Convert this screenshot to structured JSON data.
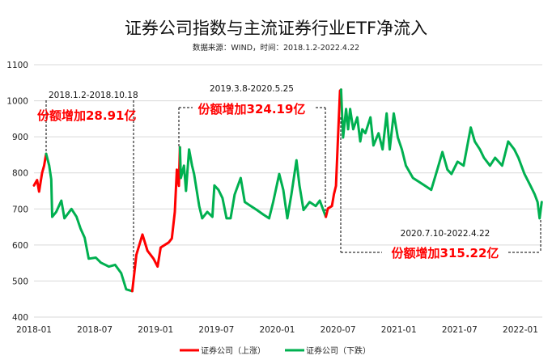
{
  "chart_data": {
    "type": "line",
    "title": "证券公司指数与主流证券行业ETF净流入",
    "subtitle": "数据来源：WIND，时间：2018.1.2-2022.4.22",
    "xlabel": "",
    "ylabel": "",
    "x_unit": "months since 2018-01",
    "ylim": [
      400,
      1100
    ],
    "yticks": [
      "1100",
      "1000",
      "900",
      "800",
      "700",
      "600",
      "500",
      "400"
    ],
    "xticks": [
      {
        "label": "2018-01",
        "x": 0
      },
      {
        "label": "2018-07",
        "x": 6
      },
      {
        "label": "2019-01",
        "x": 12
      },
      {
        "label": "2019-07",
        "x": 18
      },
      {
        "label": "2020-01",
        "x": 24
      },
      {
        "label": "2020-07",
        "x": 30
      },
      {
        "label": "2021-01",
        "x": 36
      },
      {
        "label": "2021-07",
        "x": 42
      },
      {
        "label": "2022-01",
        "x": 48
      }
    ],
    "xlim": [
      0,
      50.1
    ],
    "grid": true,
    "legend_position": "bottom",
    "legend": [
      {
        "name": "证券公司（上涨）",
        "color": "#ff0000"
      },
      {
        "name": "证券公司（下跌）",
        "color": "#00b050"
      }
    ],
    "segments": [
      {
        "trend": "up",
        "points": [
          [
            0,
            765
          ],
          [
            0.3,
            780
          ],
          [
            0.5,
            748
          ],
          [
            0.8,
            800
          ],
          [
            1.0,
            820
          ],
          [
            1.2,
            853
          ]
        ]
      },
      {
        "trend": "down",
        "points": [
          [
            1.2,
            853
          ],
          [
            1.5,
            820
          ],
          [
            1.7,
            782
          ],
          [
            1.8,
            678
          ],
          [
            2.2,
            692
          ],
          [
            2.7,
            723
          ],
          [
            3.0,
            674
          ],
          [
            3.7,
            700
          ],
          [
            4.2,
            678
          ],
          [
            4.6,
            645
          ],
          [
            5.0,
            620
          ],
          [
            5.4,
            562
          ],
          [
            6.1,
            565
          ],
          [
            6.6,
            551
          ],
          [
            7.4,
            540
          ],
          [
            8.0,
            545
          ],
          [
            8.6,
            522
          ],
          [
            9.1,
            477
          ],
          [
            9.7,
            472
          ]
        ]
      },
      {
        "trend": "up",
        "points": [
          [
            9.7,
            472
          ],
          [
            10.1,
            573
          ],
          [
            10.7,
            629
          ],
          [
            11.2,
            584
          ],
          [
            11.8,
            562
          ],
          [
            12.2,
            540
          ],
          [
            12.5,
            593
          ],
          [
            13.3,
            607
          ],
          [
            13.6,
            618
          ],
          [
            13.9,
            692
          ],
          [
            14.1,
            809
          ],
          [
            14.3,
            764
          ],
          [
            14.4,
            871
          ]
        ]
      },
      {
        "trend": "down",
        "points": [
          [
            14.4,
            871
          ],
          [
            14.5,
            786
          ],
          [
            14.8,
            820
          ],
          [
            15.0,
            750
          ],
          [
            15.3,
            865
          ],
          [
            15.6,
            820
          ],
          [
            15.8,
            797
          ],
          [
            16.3,
            708
          ],
          [
            16.6,
            674
          ],
          [
            17.1,
            692
          ],
          [
            17.6,
            678
          ],
          [
            17.8,
            765
          ],
          [
            18.2,
            753
          ],
          [
            18.6,
            730
          ],
          [
            19.0,
            674
          ],
          [
            19.4,
            674
          ],
          [
            19.8,
            740
          ],
          [
            20.4,
            786
          ],
          [
            20.8,
            719
          ],
          [
            21.4,
            708
          ],
          [
            22.0,
            697
          ],
          [
            22.6,
            685
          ],
          [
            23.2,
            674
          ],
          [
            23.6,
            719
          ],
          [
            24.2,
            797
          ],
          [
            24.6,
            753
          ],
          [
            25.0,
            674
          ],
          [
            25.4,
            740
          ],
          [
            25.9,
            835
          ],
          [
            26.2,
            765
          ],
          [
            26.6,
            697
          ],
          [
            27.2,
            719
          ],
          [
            27.8,
            708
          ],
          [
            28.2,
            723
          ],
          [
            28.8,
            678
          ]
        ]
      },
      {
        "trend": "up",
        "points": [
          [
            28.8,
            678
          ],
          [
            29.0,
            701
          ],
          [
            29.4,
            708
          ],
          [
            29.6,
            741
          ],
          [
            29.8,
            764
          ],
          [
            30.0,
            898
          ],
          [
            30.2,
            1028
          ],
          [
            30.3,
            1031
          ]
        ]
      },
      {
        "trend": "down",
        "points": [
          [
            30.3,
            1031
          ],
          [
            30.4,
            965
          ],
          [
            30.5,
            898
          ],
          [
            30.8,
            977
          ],
          [
            31.0,
            921
          ],
          [
            31.2,
            977
          ],
          [
            31.5,
            921
          ],
          [
            31.9,
            954
          ],
          [
            32.2,
            887
          ],
          [
            32.4,
            921
          ],
          [
            32.7,
            910
          ],
          [
            33.2,
            954
          ],
          [
            33.5,
            876
          ],
          [
            34.0,
            910
          ],
          [
            34.4,
            865
          ],
          [
            34.8,
            965
          ],
          [
            35.1,
            865
          ],
          [
            35.5,
            965
          ],
          [
            35.9,
            898
          ],
          [
            36.3,
            865
          ],
          [
            36.7,
            820
          ],
          [
            37.4,
            786
          ],
          [
            38.0,
            775
          ],
          [
            38.6,
            764
          ],
          [
            39.2,
            753
          ],
          [
            39.8,
            809
          ],
          [
            40.3,
            858
          ],
          [
            40.8,
            809
          ],
          [
            41.2,
            797
          ],
          [
            41.8,
            831
          ],
          [
            42.4,
            820
          ],
          [
            43.1,
            926
          ],
          [
            43.5,
            887
          ],
          [
            44.0,
            865
          ],
          [
            44.4,
            842
          ],
          [
            45.0,
            820
          ],
          [
            45.5,
            842
          ],
          [
            46.2,
            820
          ],
          [
            46.8,
            887
          ],
          [
            47.4,
            865
          ],
          [
            47.8,
            842
          ],
          [
            48.4,
            797
          ],
          [
            49.0,
            764
          ],
          [
            49.4,
            741
          ],
          [
            49.7,
            719
          ],
          [
            49.9,
            674
          ],
          [
            50.1,
            719
          ]
        ]
      }
    ],
    "annotations": [
      {
        "period": "2018.1.2-2018.10.18",
        "text": "份额增加28.91亿"
      },
      {
        "period": "2019.3.8-2020.5.25",
        "text": "份额增加324.19亿"
      },
      {
        "period": "2020.7.10-2022.4.22",
        "text": "份额增加315.22亿"
      }
    ]
  }
}
